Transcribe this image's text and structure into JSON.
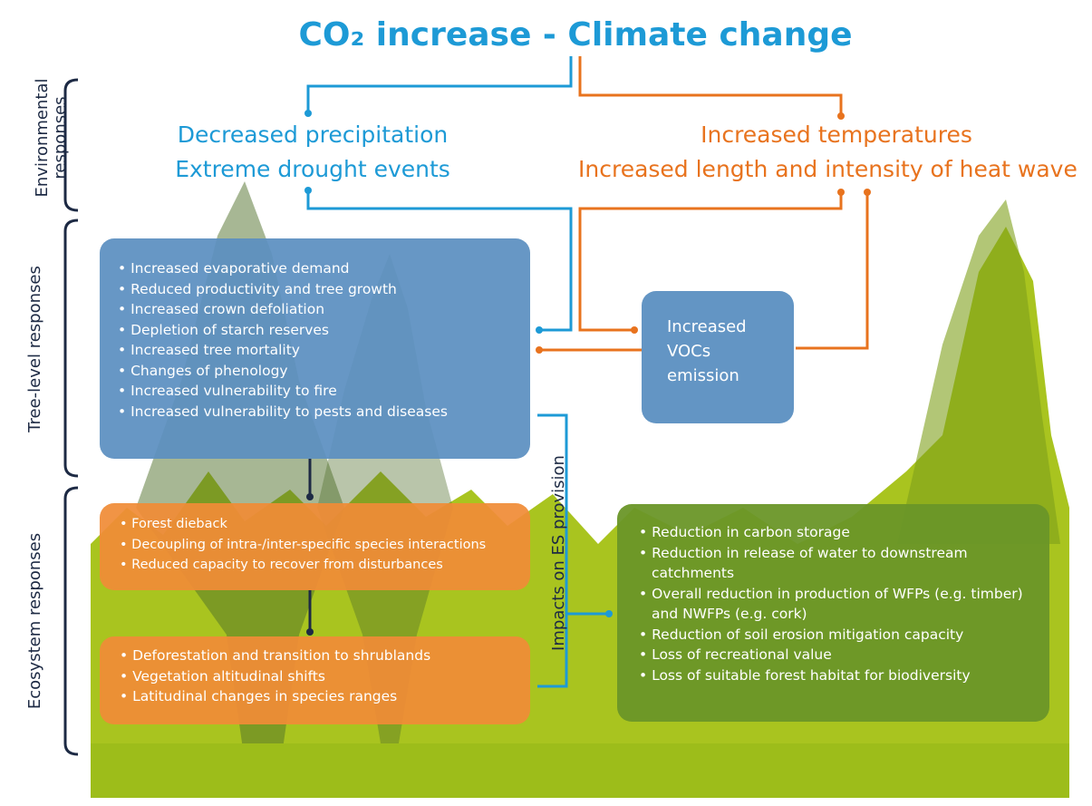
{
  "title": "CO₂ increase - Climate change",
  "side_labels": [
    [
      "Environmental",
      "responses"
    ],
    [
      "Tree-level responses"
    ],
    [
      "Ecosystem responses"
    ]
  ],
  "environmental": {
    "left": [
      "Decreased precipitation",
      "Extreme drought events"
    ],
    "right": [
      "Increased temperatures",
      "Increased length and intensity of heat wave"
    ]
  },
  "tree_box": {
    "items": [
      "Increased evaporative demand",
      "Reduced productivity and tree growth",
      "Increased crown defoliation",
      "Depletion of starch reserves",
      "Increased tree mortality",
      "Changes of phenology",
      "Increased vulnerability to fire",
      "Increased vulnerability to pests and diseases"
    ]
  },
  "vocs_box": {
    "lines": [
      "Increased",
      "VOCs",
      "emission"
    ]
  },
  "ecosystem_box_1": {
    "items": [
      "Forest dieback",
      "Decoupling of intra-/inter-specific species interactions",
      "Reduced capacity to recover from disturbances"
    ]
  },
  "ecosystem_box_2": {
    "items": [
      "Deforestation and transition to shrublands",
      "Vegetation altitudinal shifts",
      "Latitudinal changes in species ranges"
    ]
  },
  "impacts_label": "Impacts on ES provision",
  "es_box": {
    "items": [
      "Reduction in carbon storage",
      "Reduction in release of water to downstream catchments",
      "Overall reduction in production of WFPs (e.g. timber) and NWFPs (e.g. cork)",
      "Reduction of soil erosion mitigation capacity",
      "Loss of recreational value",
      "Loss of suitable forest habitat for biodiversity"
    ]
  }
}
